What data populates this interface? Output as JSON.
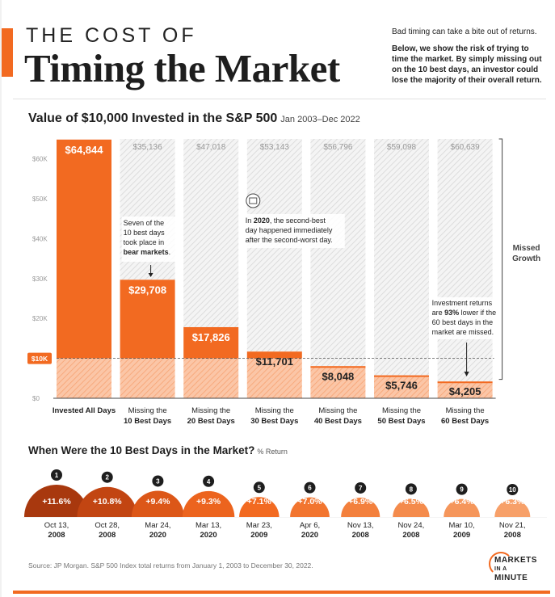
{
  "header": {
    "title_small": "THE COST OF",
    "title_big": "Timing the Market",
    "intro_line1": "Bad timing can take a bite out of returns.",
    "intro_line2": "Below, we show the risk of trying to time the market. By simply missing out on the 10 best days, an investor could lose the majority of their overall return."
  },
  "chart_title": "Value of $10,000 Invested in the S&P 500",
  "chart_subtitle": "Jan 2003–Dec 2022",
  "chart_data": [
    {
      "type": "bar",
      "title": "Value of $10,000 Invested in the S&P 500",
      "subtitle": "Jan 2003–Dec 2022",
      "categories": [
        "Invested All Days",
        "Missing the 10 Best Days",
        "Missing the 20 Best Days",
        "Missing the 30 Best Days",
        "Missing the 40 Best Days",
        "Missing the 50 Best Days",
        "Missing the 60 Best Days"
      ],
      "values": [
        64844,
        29708,
        17826,
        11701,
        8048,
        5746,
        4205
      ],
      "value_labels": [
        "$64,844",
        "$29,708",
        "$17,826",
        "$11,701",
        "$8,048",
        "$5,746",
        "$4,205"
      ],
      "missed_growth_values": [
        null,
        35136,
        47018,
        53143,
        56796,
        59098,
        60639
      ],
      "missed_growth_labels": [
        "",
        "$35,136",
        "$47,018",
        "$53,143",
        "$56,796",
        "$59,098",
        "$60,639"
      ],
      "y_ticks": [
        "$0",
        "$10K",
        "$20K",
        "$30K",
        "$40K",
        "$50K",
        "$60K"
      ],
      "ylim": [
        0,
        65000
      ],
      "reference_line": {
        "value": 10000,
        "label": "$10K"
      },
      "missed_label": "Missed\nGrowth",
      "annotations": [
        {
          "text": "Seven of the\n10 best days\ntook place in\n**bear markets**."
        },
        {
          "text": "In **2020**, the second-best\nday happened immediately\nafter the second-worst day."
        },
        {
          "text": "Investment returns\nare **93%** lower if the\n60 best days in the\nmarket are missed."
        }
      ],
      "colors": {
        "all_days": "#f26a21",
        "missing": "#f26a21",
        "below_10k": "#f9b38c",
        "missed_hatch": "#cfcfcf",
        "ref_line": "#555555"
      }
    },
    {
      "type": "bar",
      "title": "When Were the 10 Best Days in the Market?",
      "subtitle": "% Return",
      "ranks": [
        "1",
        "2",
        "3",
        "4",
        "5",
        "6",
        "7",
        "8",
        "9",
        "10"
      ],
      "values": [
        11.6,
        10.8,
        9.4,
        9.3,
        7.1,
        7.0,
        6.9,
        6.5,
        6.4,
        6.3
      ],
      "value_labels": [
        "+11.6%",
        "+10.8%",
        "+9.4%",
        "+9.3%",
        "+7.1%",
        "+7.0%",
        "+6.9%",
        "+6.5%",
        "+6.4%",
        "+6.3%"
      ],
      "dates": [
        "Oct 13,\n2008",
        "Oct 28,\n2008",
        "Mar 24,\n2020",
        "Mar 13,\n2020",
        "Mar 23,\n2009",
        "Apr 6,\n2020",
        "Nov 13,\n2008",
        "Nov 24,\n2008",
        "Mar 10,\n2009",
        "Nov 21,\n2008"
      ],
      "colors": [
        "#a8380e",
        "#c24512",
        "#dc5718",
        "#ec641e",
        "#f26a21",
        "#f2752f",
        "#f3803d",
        "#f48b4c",
        "#f5965b",
        "#f7a069"
      ]
    }
  ],
  "section2_title": "When Were the 10 Best Days in the Market?",
  "section2_sub": "% Return",
  "source": "Source: JP Morgan. S&P 500 Index total returns from January 1, 2003 to December 30, 2022.",
  "logo_line1": "MARKETS",
  "logo_line2": "IN A MINUTE"
}
